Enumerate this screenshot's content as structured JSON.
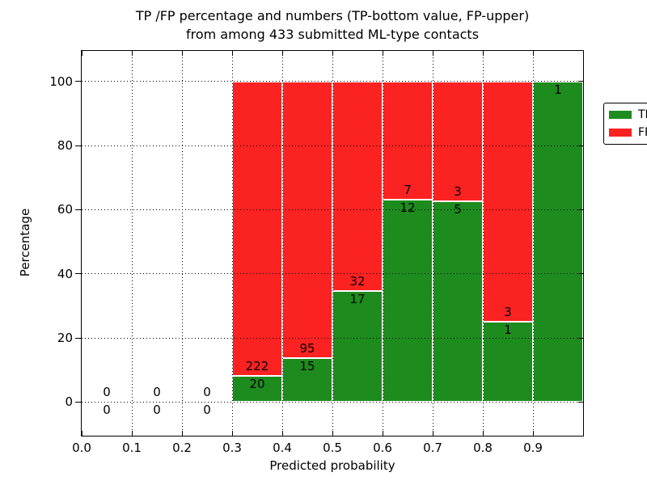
{
  "figure": {
    "title_line1": "TP /FP percentage and numbers (TP-bottom value, FP-upper)",
    "title_line2": "from among 433 submitted ML-type contacts"
  },
  "chart_data": {
    "type": "bar",
    "subtype": "stacked-percentage-histogram",
    "title": "TP /FP percentage and numbers (TP-bottom value, FP-upper) from among 433 submitted ML-type contacts",
    "xlabel": "Predicted probability",
    "ylabel": "Percentage",
    "xlim": [
      0.0,
      1.0
    ],
    "ylim": [
      -10.5,
      109.5
    ],
    "bin_width": 0.1,
    "bin_starts": [
      0.0,
      0.1,
      0.2,
      0.3,
      0.4,
      0.5,
      0.6,
      0.7,
      0.8,
      0.9
    ],
    "x_tick_labels": [
      "0.0",
      "0.1",
      "0.2",
      "0.3",
      "0.4",
      "0.5",
      "0.6",
      "0.7",
      "0.8",
      "0.9"
    ],
    "y_ticks": [
      0,
      20,
      40,
      60,
      80,
      100
    ],
    "y_tick_labels": [
      "0",
      "20",
      "40",
      "60",
      "80",
      "100"
    ],
    "grid": "dotted",
    "legend_position": "upper-right",
    "total_contacts": 433,
    "colors": {
      "tp": "#1e8b1e",
      "fp": "#fb2222"
    },
    "series": [
      {
        "name": "TP",
        "values": [
          0,
          0,
          0,
          20,
          15,
          17,
          12,
          5,
          1,
          1
        ]
      },
      {
        "name": "FP",
        "values": [
          0,
          0,
          0,
          222,
          95,
          32,
          7,
          3,
          3,
          0
        ]
      }
    ]
  }
}
